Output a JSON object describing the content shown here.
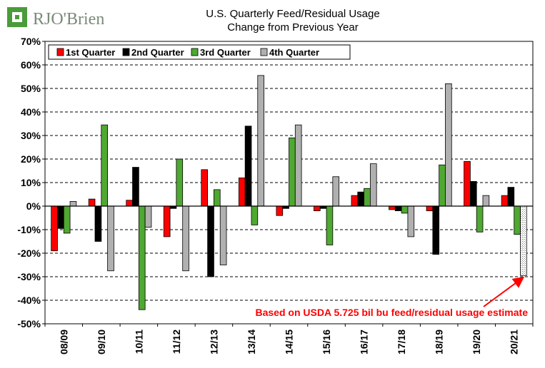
{
  "logo": {
    "text": "RJO'Brien"
  },
  "title": "U.S. Quarterly Feed/Residual Usage",
  "subtitle": "Change from Previous Year",
  "annotation": "Based on USDA 5.725 bil bu feed/residual usage estimate",
  "colors": {
    "q1": "#ff0000",
    "q2": "#000000",
    "q3": "#4fa832",
    "q4": "#b0b0b0",
    "annotation": "#ff0000",
    "logo_green": "#4a9c3a",
    "logo_gray": "#7a8a7a"
  },
  "chart_data": {
    "type": "bar",
    "categories": [
      "08/09",
      "09/10",
      "10/11",
      "11/12",
      "12/13",
      "13/14",
      "14/15",
      "15/16",
      "16/17",
      "17/18",
      "18/19",
      "19/20",
      "20/21"
    ],
    "series": [
      {
        "name": "1st Quarter",
        "values": [
          -19,
          3,
          2.5,
          -13,
          15.5,
          12,
          -4,
          -2,
          4.5,
          -1.5,
          -2,
          19,
          4.5
        ]
      },
      {
        "name": "2nd Quarter",
        "values": [
          -9.5,
          -15,
          16.5,
          -1,
          -30,
          34,
          -1,
          -1,
          6,
          -2,
          -20.5,
          10.5,
          8
        ]
      },
      {
        "name": "3rd Quarter",
        "values": [
          -11.5,
          34.5,
          -44,
          20,
          7,
          -8,
          29,
          -16.5,
          7.5,
          -3,
          17.5,
          -11,
          -12
        ]
      },
      {
        "name": "4th Quarter",
        "values": [
          2,
          -27.5,
          -9,
          -27.5,
          -25,
          55.5,
          34.5,
          12.5,
          18,
          -13,
          52,
          4.5,
          -29.5
        ]
      }
    ],
    "estimate": {
      "series": "4th Quarter",
      "category": "20/21"
    },
    "ylim": [
      -50,
      70
    ],
    "yticks": [
      -50,
      -40,
      -30,
      -20,
      -10,
      0,
      10,
      20,
      30,
      40,
      50,
      60,
      70
    ],
    "ytick_labels": [
      "-50%",
      "-40%",
      "-30%",
      "-20%",
      "-10%",
      "0%",
      "10%",
      "20%",
      "30%",
      "40%",
      "50%",
      "60%",
      "70%"
    ],
    "grid": true,
    "legend_position": "top-left"
  }
}
